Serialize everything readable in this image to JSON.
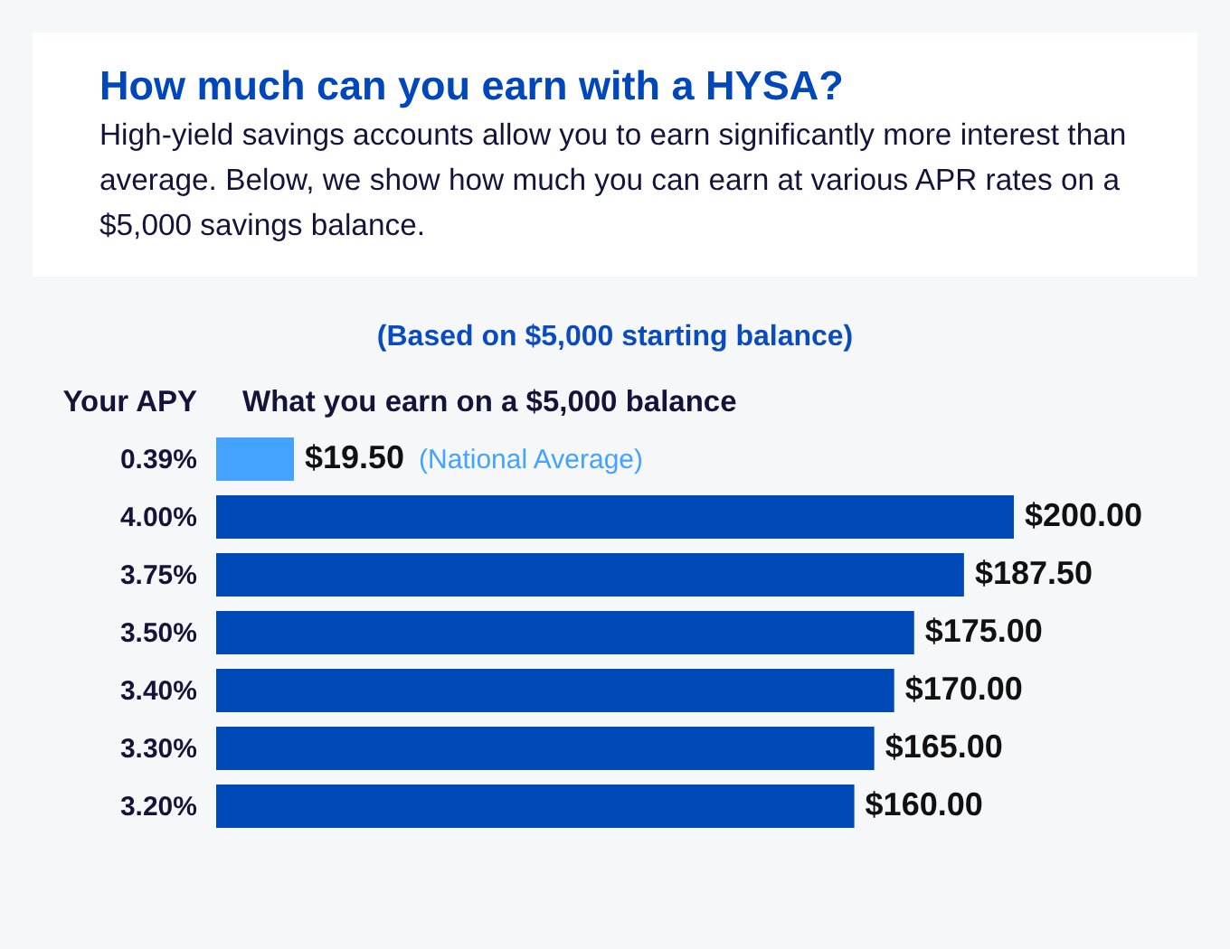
{
  "chart_data": {
    "type": "bar",
    "orientation": "horizontal",
    "title": "How much can you earn with a HYSA?",
    "subtitle": "High-yield savings accounts allow you to earn significantly more interest than\naverage. Below, we show how much you can earn at various APR rates on a\n$5,000 savings balance.",
    "ylabel": "Your APY",
    "xlabel": "What you earn on a $5,000 balance",
    "categories": [
      "0.39%",
      "4.00%",
      "3.75%",
      "3.50%",
      "3.40%",
      "3.30%",
      "3.20%"
    ],
    "values": [
      19.5,
      200,
      187.5,
      175,
      170,
      165,
      160
    ],
    "colors": [
      "#44a3ff",
      "#0049b8",
      "#0049b8",
      "#0049b8",
      "#0049b8",
      "#0049b8",
      "#0049b8"
    ],
    "value_labels": [
      "$19.50",
      "$200.00",
      "$187.50",
      "$175.00",
      "$170.00",
      "$165.00",
      "$160.00"
    ],
    "annotations": [
      "(Based on $5,000 starting balance)",
      "(National Average)"
    ],
    "tick_labels": "y"
  }
}
